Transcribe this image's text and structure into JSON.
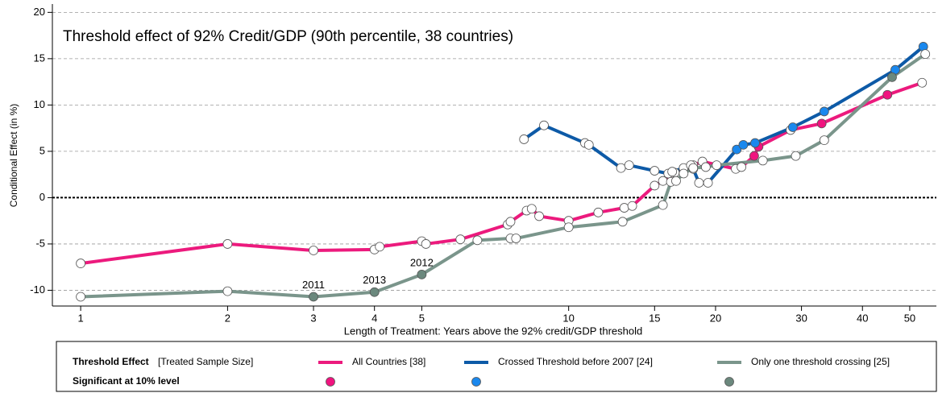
{
  "chart_data": {
    "type": "line",
    "title": "Threshold effect of 92% Credit/GDP (90th percentile, 38 countries)",
    "x_label": "Length of Treatment: Years above the 92% credit/GDP threshold",
    "y_label": "Conditional Effect (in %)",
    "x_scale": "log",
    "xlim": [
      0.875,
      56.7
    ],
    "xticks": [
      1,
      2,
      3,
      4,
      5,
      10,
      15,
      20,
      30,
      40,
      50
    ],
    "ylim": [
      -11.7,
      20.9
    ],
    "yticks": [
      -10,
      -5,
      0,
      5,
      10,
      15,
      20
    ],
    "grid": true,
    "legend": {
      "title": "Threshold Effect",
      "title_note": "[Treated Sample Size]",
      "marker_row": "Significant at 10% level"
    },
    "series": [
      {
        "name": "All Countries [38]",
        "color": "#ec1a7d",
        "sig_color": "#f0137f",
        "x": [
          1,
          2,
          3,
          4,
          4.1,
          5,
          5.1,
          6,
          7.5,
          7.6,
          8.2,
          8.4,
          8.7,
          10,
          11.5,
          13,
          13.5,
          15,
          15.6,
          16.5,
          18,
          18.8,
          22,
          22.6,
          24,
          24.5,
          28.5,
          33,
          45,
          53
        ],
        "values": [
          -7.1,
          -5.0,
          -5.7,
          -5.6,
          -5.3,
          -4.7,
          -5.0,
          -4.5,
          -2.9,
          -2.6,
          -1.4,
          -1.2,
          -2.0,
          -2.5,
          -1.6,
          -1.1,
          -0.9,
          1.3,
          1.8,
          2.7,
          3.5,
          3.9,
          3.1,
          3.3,
          4.5,
          5.5,
          7.3,
          8.0,
          11.1,
          12.4
        ],
        "significant": [
          false,
          false,
          false,
          false,
          false,
          false,
          false,
          false,
          false,
          false,
          false,
          false,
          false,
          false,
          false,
          false,
          false,
          false,
          false,
          false,
          false,
          false,
          false,
          false,
          true,
          true,
          false,
          true,
          true,
          false
        ]
      },
      {
        "name": "Crossed Threshold before 2007 [24]",
        "color": "#0d5aa7",
        "sig_color": "#1a88ee",
        "x": [
          8.1,
          8.9,
          10.8,
          11,
          12.8,
          13.3,
          15,
          16,
          16.3,
          17.2,
          17.8,
          18,
          18.5,
          19.3,
          22.1,
          22.8,
          24.1,
          28.8,
          33.4,
          46.7,
          53.3
        ],
        "values": [
          6.3,
          7.8,
          5.9,
          5.7,
          3.2,
          3.5,
          2.9,
          2.6,
          2.8,
          3.2,
          3.5,
          3.1,
          1.6,
          1.6,
          5.2,
          5.7,
          5.9,
          7.6,
          9.3,
          13.8,
          16.3
        ],
        "significant": [
          false,
          false,
          false,
          false,
          false,
          false,
          false,
          false,
          false,
          false,
          false,
          false,
          false,
          false,
          true,
          true,
          true,
          true,
          true,
          true,
          true
        ]
      },
      {
        "name": "Only one threshold crossing [25]",
        "color": "#7a958b",
        "sig_color": "#6b887d",
        "x": [
          1,
          2,
          3,
          4,
          5,
          6.5,
          7.6,
          7.8,
          10,
          12.9,
          15.6,
          16.2,
          16.6,
          17.2,
          18,
          19.1,
          20.1,
          25,
          29.2,
          33.4,
          46,
          53.8
        ],
        "values": [
          -10.7,
          -10.1,
          -10.7,
          -10.2,
          -8.3,
          -4.6,
          -4.4,
          -4.4,
          -3.2,
          -2.6,
          -0.8,
          1.7,
          1.8,
          2.6,
          3.2,
          3.3,
          3.5,
          4.0,
          4.5,
          6.2,
          13.0,
          15.5
        ],
        "significant": [
          false,
          false,
          true,
          true,
          true,
          false,
          false,
          false,
          false,
          false,
          false,
          false,
          false,
          false,
          false,
          false,
          false,
          false,
          false,
          false,
          true,
          false
        ],
        "point_labels": [
          null,
          null,
          "2011",
          "2013",
          "2012",
          null,
          null,
          null,
          null,
          null,
          null,
          null,
          null,
          null,
          null,
          null,
          null,
          null,
          null,
          null,
          null,
          null
        ]
      }
    ]
  }
}
